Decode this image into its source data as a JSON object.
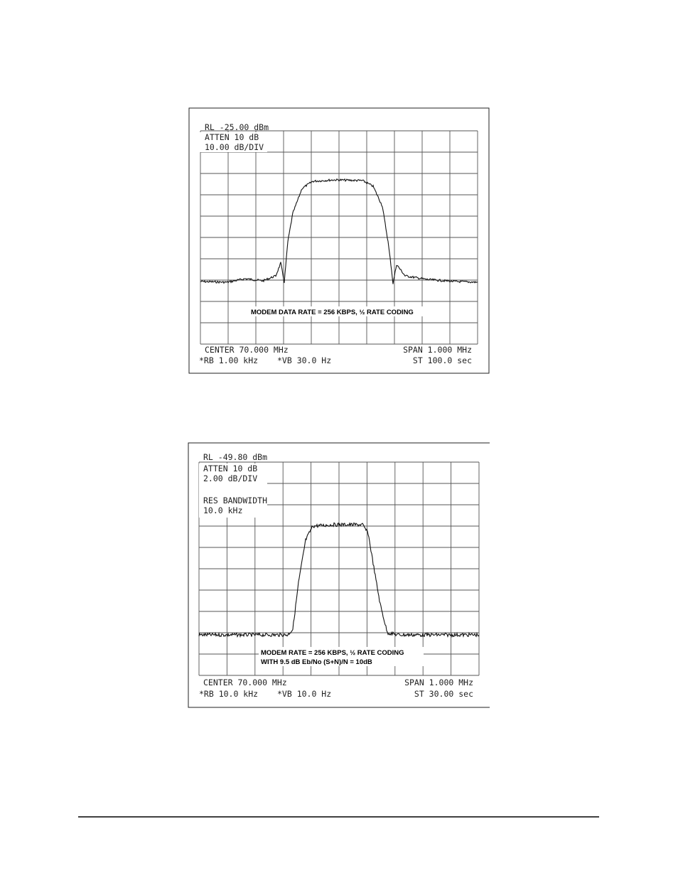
{
  "figures": [
    {
      "ref_level": "RL -25.00 dBm",
      "atten": "ATTEN 10 dB",
      "scale": "10.00 dB/DIV",
      "caption": "MODEM DATA RATE = 256 KBPS, ½ RATE CODING",
      "center": "CENTER 70.000 MHz",
      "span": "SPAN 1.000 MHz",
      "rbw": "*RB 1.00 kHz",
      "vbw": "*VB 30.0 Hz",
      "sweep": "ST 100.0 sec"
    },
    {
      "ref_level": "RL -49.80 dBm",
      "atten": "ATTEN 10 dB",
      "scale": "2.00 dB/DIV",
      "res_bw_label": "RES BANDWIDTH",
      "res_bw_value": "10.0 kHz",
      "caption": "MODEM RATE = 256 KBPS, ½ RATE CODING",
      "caption_line2": "WITH 9.5 dB Eb/No (S+N)/N = 10dB",
      "center": "CENTER 70.000 MHz",
      "span": "SPAN 1.000 MHz",
      "rbw": "*RB 10.0 kHz",
      "vbw": "*VB 10.0 Hz",
      "sweep": "ST 30.00 sec"
    }
  ]
}
